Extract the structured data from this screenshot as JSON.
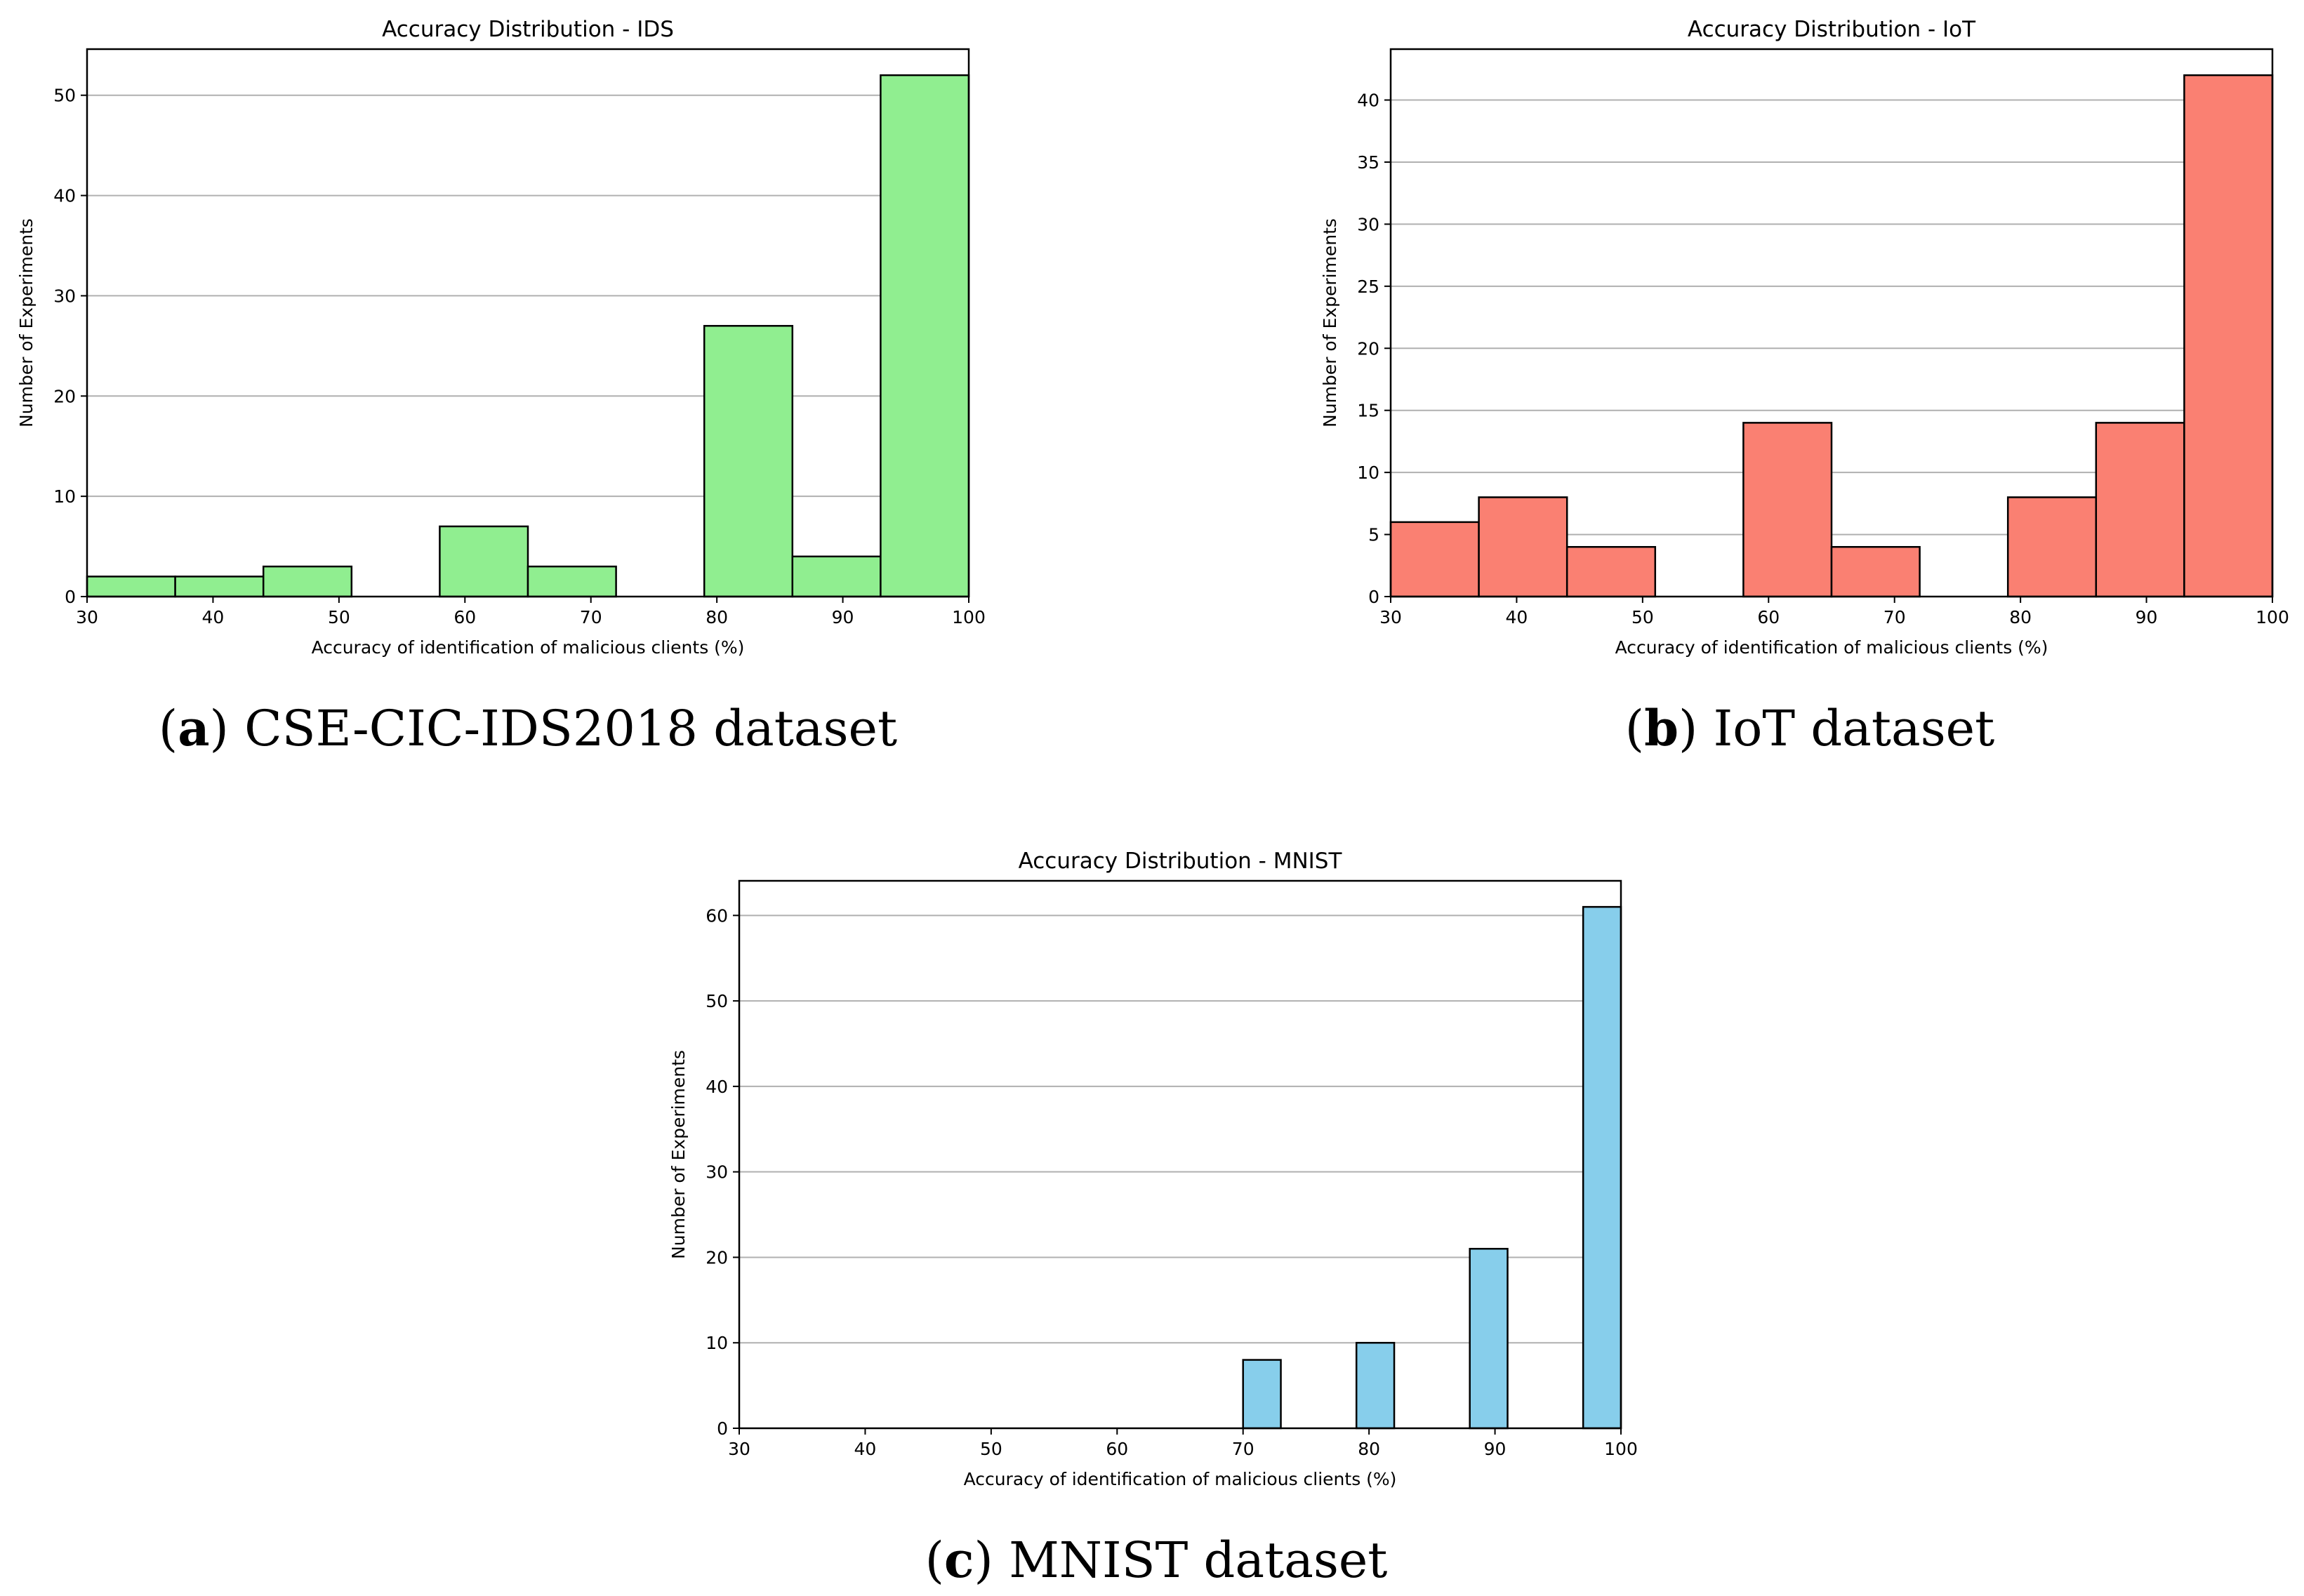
{
  "charts": [
    {
      "caption": {
        "letter": "a",
        "text": "CSE-CIC-IDS2018 dataset"
      },
      "chart_data": {
        "type": "bar",
        "title": "Accuracy Distribution - IDS",
        "xlabel": "Accuracy of identification of malicious clients (%)",
        "ylabel": "Number of Experiments",
        "xlim": [
          30,
          100
        ],
        "ylim": [
          0,
          54.6
        ],
        "xticks": [
          30,
          40,
          50,
          60,
          70,
          80,
          90,
          100
        ],
        "yticks": [
          0,
          10,
          20,
          30,
          40,
          50
        ],
        "grid": "y",
        "bar_color": "#90ee90",
        "bins": [
          {
            "x0": 30,
            "x1": 37,
            "value": 2
          },
          {
            "x0": 37,
            "x1": 44,
            "value": 2
          },
          {
            "x0": 44,
            "x1": 51,
            "value": 3
          },
          {
            "x0": 51,
            "x1": 58,
            "value": 0
          },
          {
            "x0": 58,
            "x1": 65,
            "value": 7
          },
          {
            "x0": 65,
            "x1": 72,
            "value": 3
          },
          {
            "x0": 72,
            "x1": 79,
            "value": 0
          },
          {
            "x0": 79,
            "x1": 86,
            "value": 27
          },
          {
            "x0": 86,
            "x1": 93,
            "value": 4
          },
          {
            "x0": 93,
            "x1": 100,
            "value": 52
          }
        ]
      }
    },
    {
      "caption": {
        "letter": "b",
        "text": "IoT dataset"
      },
      "chart_data": {
        "type": "bar",
        "title": "Accuracy Distribution - IoT",
        "xlabel": "Accuracy of identification of malicious clients (%)",
        "ylabel": "Number of Experiments",
        "xlim": [
          30,
          100
        ],
        "ylim": [
          0,
          44.1
        ],
        "xticks": [
          30,
          40,
          50,
          60,
          70,
          80,
          90,
          100
        ],
        "yticks": [
          0,
          5,
          10,
          15,
          20,
          25,
          30,
          35,
          40
        ],
        "grid": "y",
        "bar_color": "#fa8072",
        "bins": [
          {
            "x0": 30,
            "x1": 37,
            "value": 6
          },
          {
            "x0": 37,
            "x1": 44,
            "value": 8
          },
          {
            "x0": 44,
            "x1": 51,
            "value": 4
          },
          {
            "x0": 51,
            "x1": 58,
            "value": 0
          },
          {
            "x0": 58,
            "x1": 65,
            "value": 14
          },
          {
            "x0": 65,
            "x1": 72,
            "value": 4
          },
          {
            "x0": 72,
            "x1": 79,
            "value": 0
          },
          {
            "x0": 79,
            "x1": 86,
            "value": 8
          },
          {
            "x0": 86,
            "x1": 93,
            "value": 14
          },
          {
            "x0": 93,
            "x1": 100,
            "value": 42
          }
        ]
      }
    },
    {
      "caption": {
        "letter": "c",
        "text": "MNIST dataset"
      },
      "chart_data": {
        "type": "bar",
        "title": "Accuracy Distribution - MNIST",
        "xlabel": "Accuracy of identification of malicious clients (%)",
        "ylabel": "Number of Experiments",
        "xlim": [
          30,
          100
        ],
        "ylim": [
          0,
          64.05
        ],
        "xticks": [
          30,
          40,
          50,
          60,
          70,
          80,
          90,
          100
        ],
        "yticks": [
          0,
          10,
          20,
          30,
          40,
          50,
          60
        ],
        "grid": "y",
        "bar_color": "#87ceeb",
        "bins": [
          {
            "x0": 70,
            "x1": 73,
            "value": 8
          },
          {
            "x0": 79,
            "x1": 82,
            "value": 10
          },
          {
            "x0": 88,
            "x1": 91,
            "value": 21
          },
          {
            "x0": 97,
            "x1": 100,
            "value": 61
          }
        ]
      }
    }
  ]
}
